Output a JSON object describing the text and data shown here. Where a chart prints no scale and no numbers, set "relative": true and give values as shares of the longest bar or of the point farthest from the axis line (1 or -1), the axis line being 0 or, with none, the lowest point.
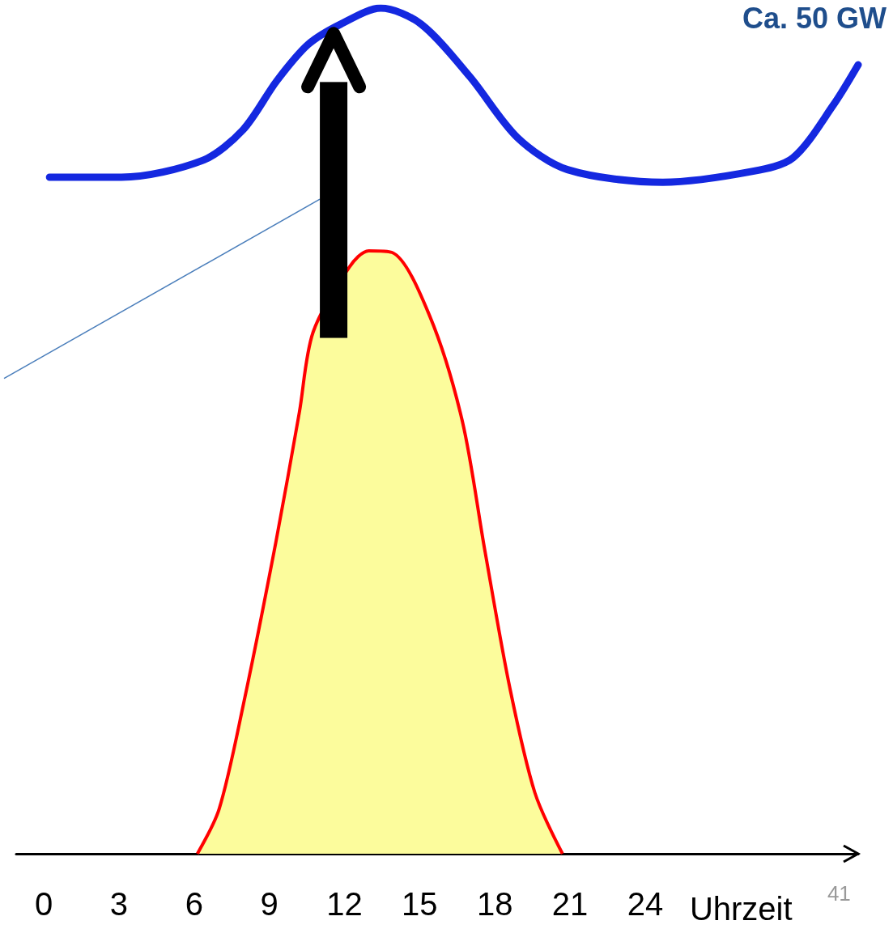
{
  "chart_data": {
    "type": "line",
    "relative": true,
    "xlabel": "Uhrzeit",
    "xlim": [
      -1.1,
      32.5
    ],
    "xticks": [
      0,
      3,
      6,
      9,
      12,
      15,
      18,
      21,
      24
    ],
    "marker": "none",
    "grid": false,
    "annotations": [
      "Ca. 50 GW",
      "41"
    ],
    "series": [
      {
        "color": "#1428e0",
        "x": [
          0.23,
          3.1,
          6.35,
          7.95,
          9.3,
          10.55,
          11.85,
          13.45,
          15.06,
          17.0,
          18.9,
          20.9,
          24.7,
          28.3,
          29.9,
          31.5,
          32.5
        ],
        "values": [
          0.8,
          0.8,
          0.82,
          0.856,
          0.914,
          0.957,
          0.981,
          1.0,
          0.981,
          0.919,
          0.847,
          0.809,
          0.794,
          0.807,
          0.823,
          0.885,
          0.933
        ]
      },
      {
        "type": "area",
        "color": "#ff0000",
        "x": [
          6.13,
          7.0,
          7.97,
          9.26,
          10.2,
          10.75,
          12.2,
          12.97,
          13.9,
          15.4,
          16.7,
          17.6,
          18.6,
          19.6,
          20.7
        ],
        "values": [
          0,
          0.053,
          0.177,
          0.368,
          0.522,
          0.617,
          0.694,
          0.713,
          0.711,
          0.636,
          0.512,
          0.359,
          0.196,
          0.072,
          0
        ]
      }
    ]
  }
}
